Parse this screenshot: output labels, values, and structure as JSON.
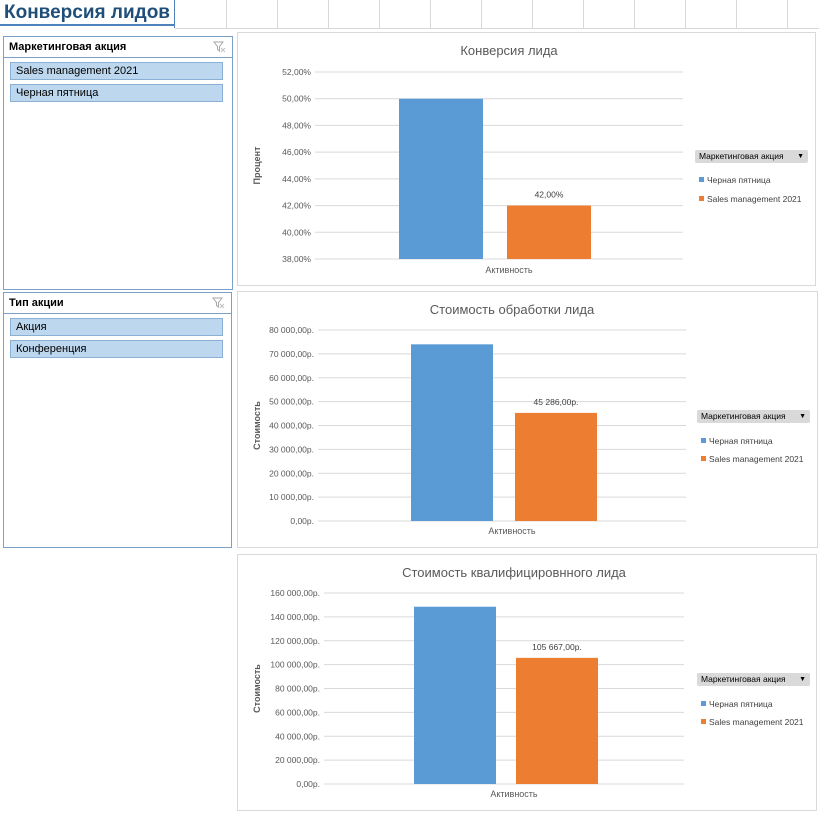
{
  "sheet": {
    "title": "Конверсия лидов"
  },
  "slicers": [
    {
      "title": "Маркетинговая акция",
      "items": [
        "Sales management 2021",
        "Черная пятница"
      ]
    },
    {
      "title": "Тип акции",
      "items": [
        "Акция",
        "Конференция"
      ]
    }
  ],
  "legend": {
    "button_label": "Маркетинговая акция",
    "entries": [
      "Черная пятница",
      "Sales management 2021"
    ]
  },
  "colors": {
    "series_1": "#5b9bd5",
    "series_2": "#ed7d31",
    "grid": "#d9d9d9",
    "axis_text": "#595959",
    "title_text": "#595959"
  },
  "chart_data": [
    {
      "type": "bar",
      "title": "Конверсия лида",
      "xlabel": "Активность",
      "ylabel": "Процент",
      "categories": [
        "Активность"
      ],
      "series": [
        {
          "name": "Черная пятница",
          "values": [
            50.0
          ]
        },
        {
          "name": "Sales management 2021",
          "values": [
            42.0
          ]
        }
      ],
      "ylim": [
        38,
        52
      ],
      "ytick_step": 2,
      "ytick_labels": [
        "38,00%",
        "40,00%",
        "42,00%",
        "44,00%",
        "46,00%",
        "48,00%",
        "50,00%",
        "52,00%"
      ],
      "data_label": "42,00%"
    },
    {
      "type": "bar",
      "title": "Стоимость обработки лида",
      "xlabel": "Активность",
      "ylabel": "Стоимость",
      "categories": [
        "Активность"
      ],
      "series": [
        {
          "name": "Черная пятница",
          "values": [
            74000
          ]
        },
        {
          "name": "Sales management 2021",
          "values": [
            45286
          ]
        }
      ],
      "ylim": [
        0,
        80000
      ],
      "ytick_step": 10000,
      "ytick_labels": [
        "0,00р.",
        "10 000,00р.",
        "20 000,00р.",
        "30 000,00р.",
        "40 000,00р.",
        "50 000,00р.",
        "60 000,00р.",
        "70 000,00р.",
        "80 000,00р."
      ],
      "data_label": "45 286,00р."
    },
    {
      "type": "bar",
      "title": "Стоимость квалифицировнного лида",
      "xlabel": "Активность",
      "ylabel": "Стоимость",
      "categories": [
        "Активность"
      ],
      "series": [
        {
          "name": "Черная пятница",
          "values": [
            148500
          ]
        },
        {
          "name": "Sales management 2021",
          "values": [
            105667
          ]
        }
      ],
      "ylim": [
        0,
        160000
      ],
      "ytick_step": 20000,
      "ytick_labels": [
        "0,00р.",
        "20 000,00р.",
        "40 000,00р.",
        "60 000,00р.",
        "80 000,00р.",
        "100 000,00р.",
        "120 000,00р.",
        "140 000,00р.",
        "160 000,00р."
      ],
      "data_label": "105 667,00р."
    }
  ]
}
